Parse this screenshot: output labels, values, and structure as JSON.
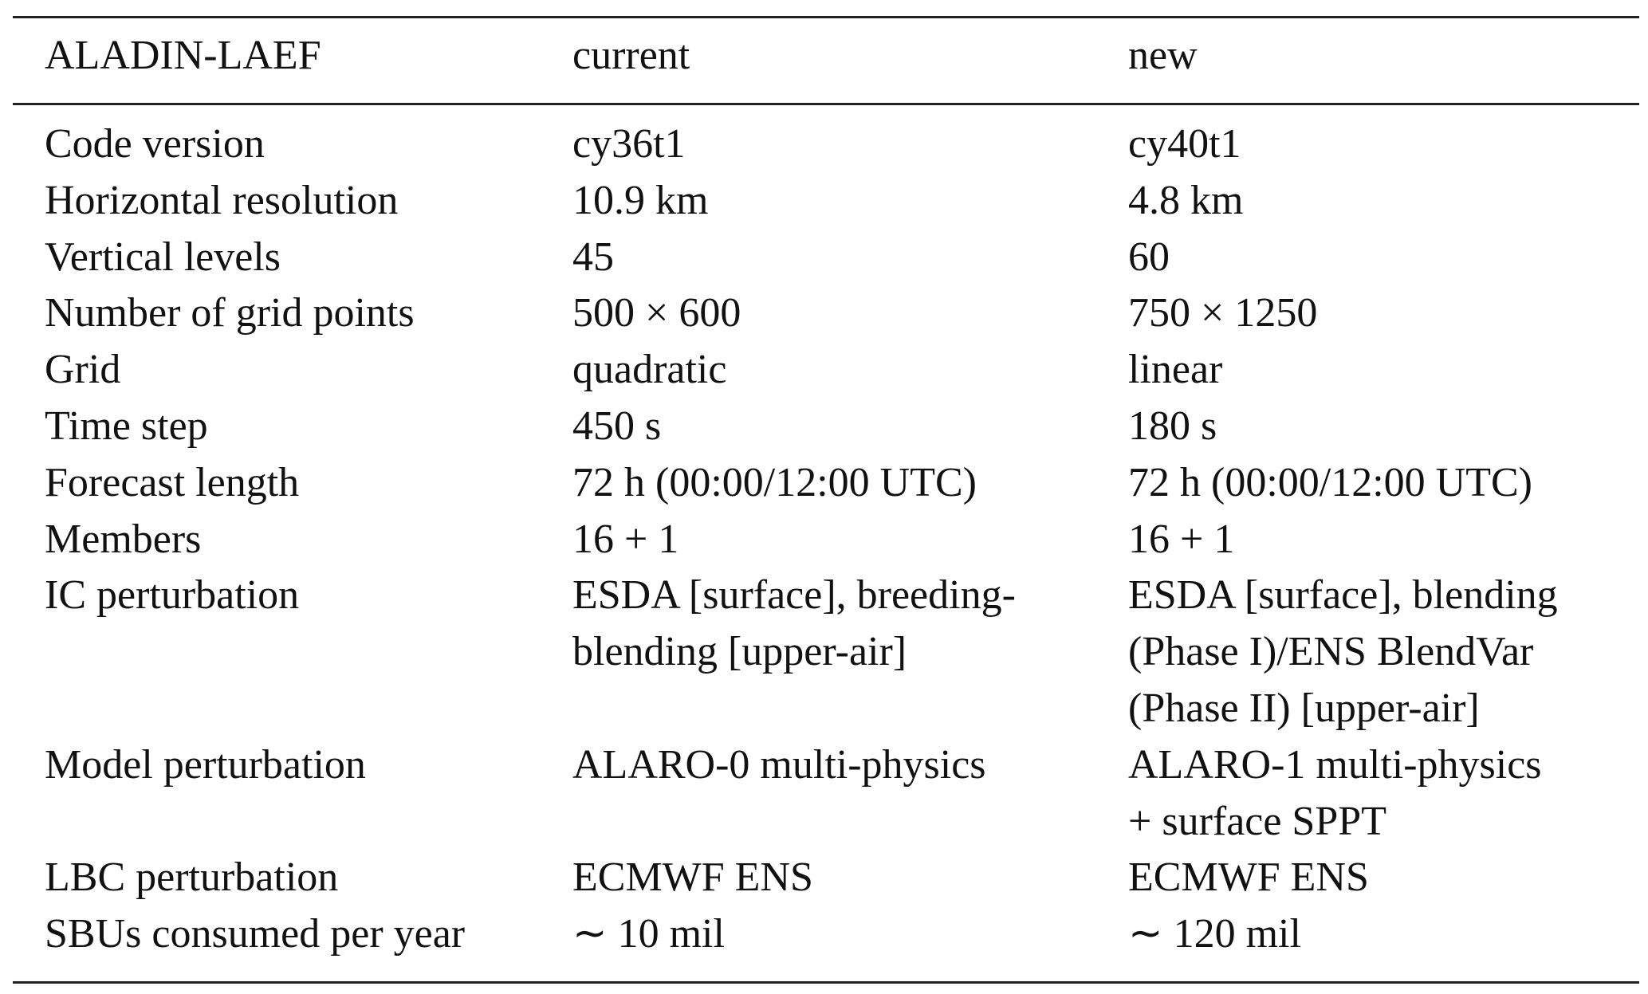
{
  "table": {
    "header": [
      "ALADIN-LAEF",
      "current",
      "new"
    ],
    "rows": [
      [
        "Code version",
        "cy36t1",
        "cy40t1"
      ],
      [
        "Horizontal resolution",
        "10.9 km",
        "4.8 km"
      ],
      [
        "Vertical levels",
        "45",
        "60"
      ],
      [
        "Number of grid points",
        "500 × 600",
        "750 × 1250"
      ],
      [
        "Grid",
        "quadratic",
        "linear"
      ],
      [
        "Time step",
        "450 s",
        "180 s"
      ],
      [
        "Forecast length",
        "72 h (00:00/12:00 UTC)",
        "72 h (00:00/12:00 UTC)"
      ],
      [
        "Members",
        "16 + 1",
        "16 + 1"
      ],
      [
        "IC perturbation",
        [
          "ESDA [surface], breeding-",
          "blending [upper-air]"
        ],
        [
          "ESDA [surface], blending",
          "(Phase I)/ENS BlendVar",
          "(Phase II) [upper-air]"
        ]
      ],
      [
        "Model perturbation",
        "ALARO-0 multi-physics",
        [
          "ALARO-1 multi-physics",
          "+ surface SPPT"
        ]
      ],
      [
        "LBC perturbation",
        "ECMWF ENS",
        "ECMWF ENS"
      ],
      [
        "SBUs consumed per year",
        "∼ 10 mil",
        "∼ 120 mil"
      ]
    ]
  }
}
